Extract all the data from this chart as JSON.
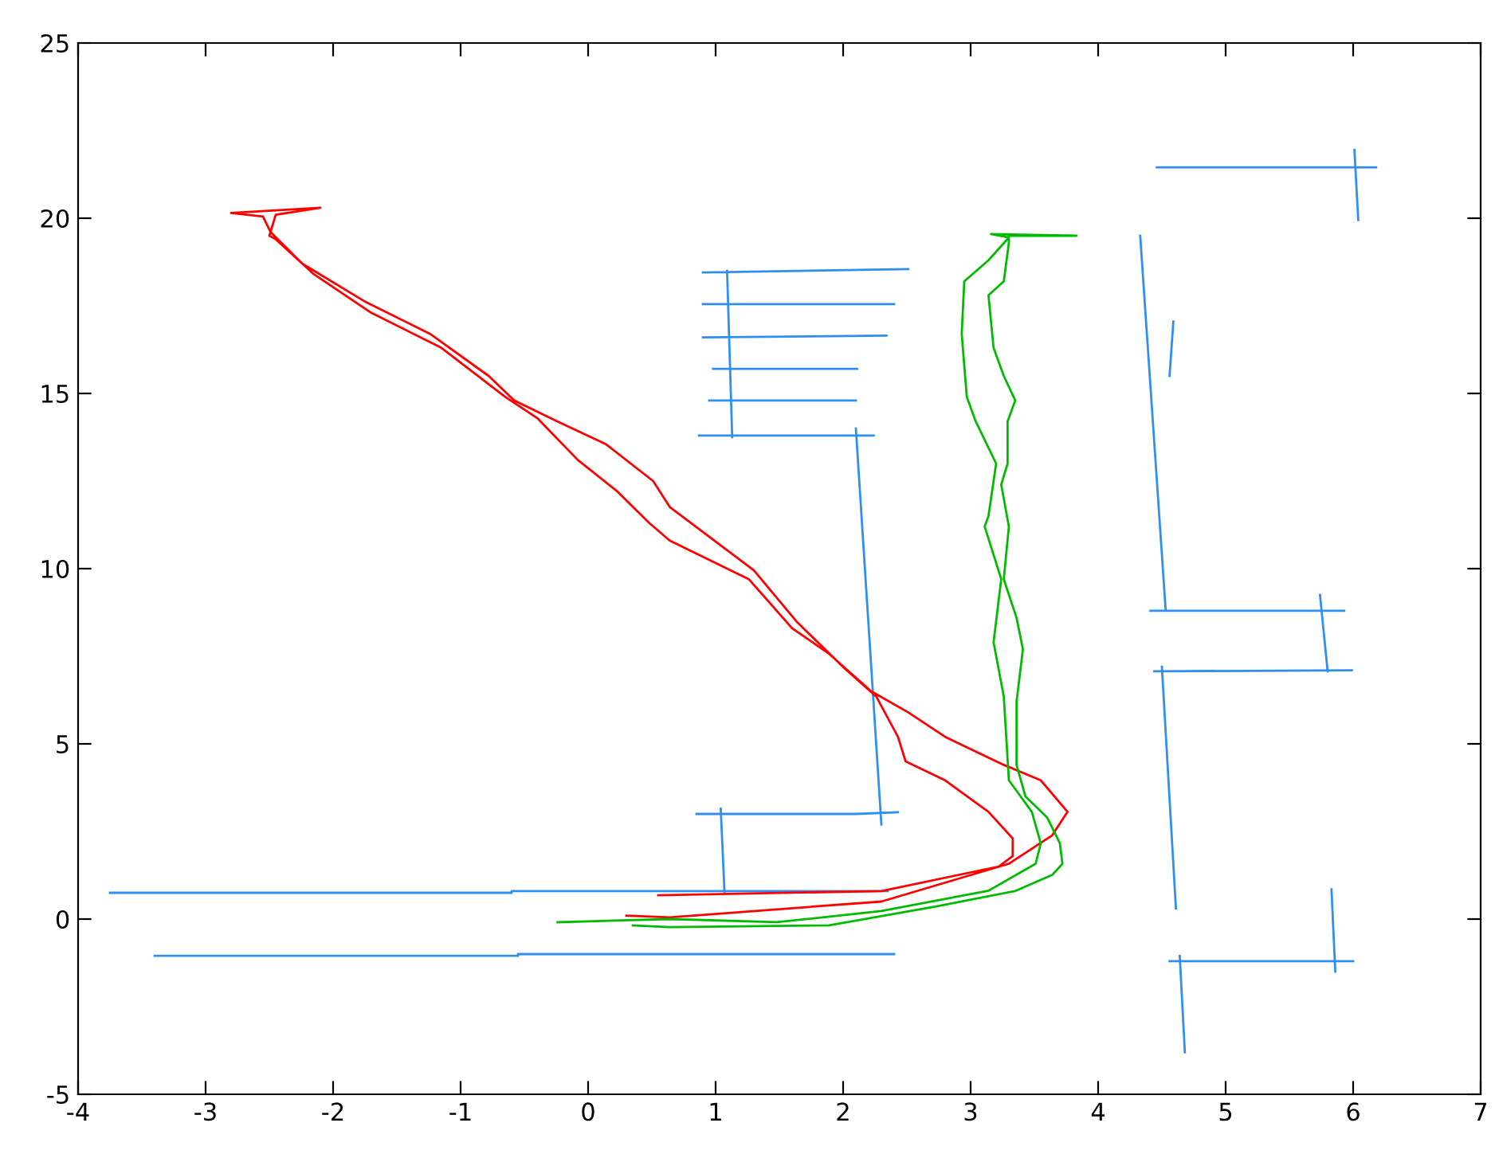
{
  "chart_data": {
    "type": "line",
    "xlim": [
      -4,
      7
    ],
    "ylim": [
      -5,
      25
    ],
    "xticks": [
      -4,
      -3,
      -2,
      -1,
      0,
      1,
      2,
      3,
      4,
      5,
      6,
      7
    ],
    "yticks": [
      -5,
      0,
      5,
      10,
      15,
      20,
      25
    ],
    "grid": false,
    "marker": "none",
    "line_style": "solid",
    "series": [
      {
        "color": "#2f8fef",
        "x": [
          -3.75,
          -0.6,
          -0.6,
          2.35,
          null,
          -3.4,
          -0.55,
          -0.55,
          2.4,
          null,
          1.04,
          1.07,
          null,
          0.85,
          2.1,
          2.43,
          null,
          2.1,
          2.3,
          null,
          0.87,
          2.24,
          null,
          0.9,
          2.51,
          null,
          0.9,
          2.4,
          null,
          0.9,
          2.34,
          null,
          0.98,
          2.11,
          null,
          0.95,
          2.1,
          null,
          1.09,
          1.13,
          null,
          4.46,
          6.18,
          null,
          6.01,
          6.04,
          null,
          4.33,
          4.53,
          null,
          4.59,
          4.56,
          null,
          4.41,
          5.93,
          null,
          5.74,
          5.8,
          null,
          4.44,
          5.99,
          null,
          4.5,
          4.61,
          null,
          5.83,
          5.86,
          null,
          4.56,
          6.0,
          null,
          4.64,
          4.68
        ],
        "values": [
          0.75,
          0.75,
          0.8,
          0.8,
          null,
          -1.05,
          -1.05,
          -1.0,
          -1.0,
          null,
          3.15,
          0.75,
          null,
          3.0,
          3.0,
          3.05,
          null,
          14.0,
          2.7,
          null,
          13.8,
          13.8,
          null,
          18.45,
          18.55,
          null,
          17.55,
          17.55,
          null,
          16.6,
          16.65,
          null,
          15.7,
          15.7,
          null,
          14.8,
          14.8,
          null,
          18.5,
          13.75,
          null,
          21.45,
          21.45,
          null,
          21.95,
          19.95,
          null,
          19.5,
          8.8,
          null,
          17.05,
          15.5,
          null,
          8.8,
          8.8,
          null,
          9.25,
          7.07,
          null,
          7.07,
          7.1,
          null,
          7.2,
          0.3,
          null,
          0.85,
          -1.5,
          null,
          -1.2,
          -1.2,
          null,
          -1.05,
          -3.8
        ]
      },
      {
        "color": "#ff0000",
        "x": [
          0.55,
          2.3,
          3.22,
          3.33,
          3.33,
          3.14,
          2.8,
          2.49,
          2.43,
          2.26,
          2.01,
          1.64,
          1.3,
          0.64,
          0.51,
          0.14,
          -0.24,
          -0.58,
          -0.78,
          -1.24,
          -1.74,
          -2.24,
          -2.49,
          -2.55,
          -2.8,
          -2.1,
          -2.45,
          -2.5,
          -2.45,
          -2.15,
          -1.7,
          -1.15,
          -0.65,
          -0.4,
          -0.08,
          0.23,
          0.48,
          0.64,
          1.26,
          1.6,
          1.89,
          2.22,
          2.51,
          2.8,
          3.26,
          3.55,
          3.76,
          3.64,
          3.3,
          2.3,
          0.64,
          0.3
        ],
        "values": [
          0.68,
          0.8,
          1.5,
          1.8,
          2.3,
          3.06,
          3.96,
          4.5,
          5.2,
          6.35,
          7.16,
          8.47,
          9.95,
          11.76,
          12.5,
          13.55,
          14.2,
          14.8,
          15.5,
          16.7,
          17.6,
          18.7,
          19.6,
          20.05,
          20.15,
          20.3,
          20.1,
          19.5,
          19.4,
          18.4,
          17.3,
          16.3,
          14.9,
          14.3,
          13.1,
          12.2,
          11.3,
          10.8,
          9.7,
          8.3,
          7.57,
          6.5,
          5.9,
          5.2,
          4.4,
          3.96,
          3.06,
          2.39,
          1.58,
          0.5,
          0.05,
          0.1
        ]
      },
      {
        "color": "#00bb00",
        "x": [
          -0.24,
          0.64,
          1.48,
          2.3,
          3.14,
          3.51,
          3.55,
          3.48,
          3.3,
          3.26,
          3.18,
          3.24,
          3.11,
          3.14,
          3.2,
          3.04,
          2.97,
          2.93,
          2.95,
          3.14,
          3.3,
          3.16,
          3.83,
          3.3,
          3.3,
          3.26,
          3.14,
          3.18,
          3.26,
          3.35,
          3.29,
          3.29,
          3.24,
          3.3,
          3.26,
          3.36,
          3.41,
          3.36,
          3.36,
          3.43,
          3.6,
          3.7,
          3.72,
          3.64,
          3.35,
          2.73,
          1.89,
          0.64,
          0.35
        ],
        "values": [
          -0.09,
          0,
          -0.09,
          0.23,
          0.81,
          1.58,
          2.16,
          3.06,
          3.96,
          6.35,
          7.9,
          9.7,
          11.2,
          11.5,
          13.0,
          14.2,
          14.9,
          16.7,
          18.2,
          18.8,
          19.45,
          19.55,
          19.5,
          19.5,
          19.3,
          18.2,
          17.8,
          16.3,
          15.5,
          14.8,
          14.2,
          13.0,
          12.4,
          11.2,
          9.7,
          8.6,
          7.7,
          6.2,
          4.4,
          3.5,
          2.9,
          2.16,
          1.58,
          1.26,
          0.8,
          0.36,
          -0.18,
          -0.23,
          -0.18
        ]
      }
    ]
  }
}
